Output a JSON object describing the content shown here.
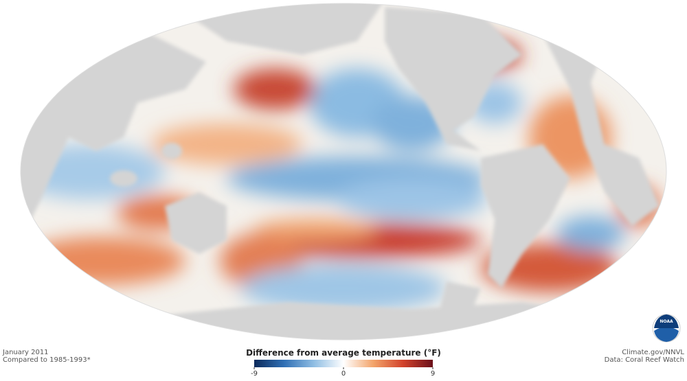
{
  "caption": {
    "date": "January 2011",
    "baseline": "Compared to 1985-1993*"
  },
  "credits": {
    "source": "Climate.gov/NNVL",
    "data": "Data: Coral Reef Watch"
  },
  "logo_text": "NOAA",
  "legend": {
    "title": "Difference from average temperature (°F)",
    "range": [
      -9,
      9
    ],
    "ticks": [
      -9,
      0,
      9
    ],
    "colors": [
      "#0b2a5b",
      "#2f6fb5",
      "#8fbde3",
      "#ffffff",
      "#f3a46a",
      "#d2422b",
      "#6b0f1a"
    ]
  }
}
